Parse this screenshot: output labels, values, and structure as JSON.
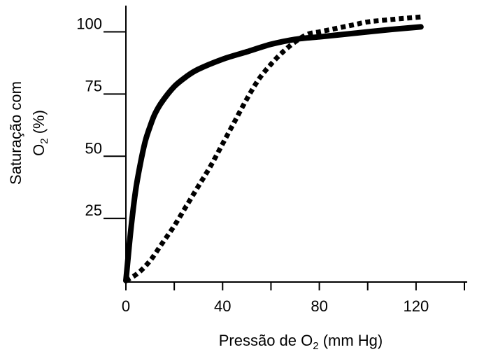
{
  "chart_data": {
    "type": "line",
    "xlabel": {
      "prefix": "Pressão de O",
      "sub": "2",
      "suffix": " (mm Hg)"
    },
    "ylabel": {
      "line1": "Saturação com",
      "line2_prefix": "O",
      "line2_sub": "2",
      "line2_suffix": " (%)"
    },
    "xlim": [
      0,
      140
    ],
    "ylim": [
      0,
      110
    ],
    "x_tick_values": [
      0,
      20,
      40,
      60,
      80,
      100,
      120,
      140
    ],
    "x_tick_labels": [
      "0",
      "40",
      "80",
      "120"
    ],
    "x_tick_label_values": [
      0,
      40,
      80,
      120
    ],
    "y_tick_values": [
      25,
      50,
      75,
      100
    ],
    "y_tick_labels": [
      "25",
      "50",
      "75",
      "100"
    ],
    "grid": false,
    "legend": "none",
    "series": [
      {
        "style": "solid",
        "color": "#000000",
        "x": [
          0,
          2,
          4,
          6,
          8,
          10,
          12,
          15,
          20,
          25,
          30,
          40,
          50,
          60,
          70,
          80,
          90,
          100,
          110,
          122
        ],
        "y": [
          0,
          20,
          36,
          47,
          56,
          62,
          67,
          72,
          78,
          82,
          85,
          89,
          92,
          95,
          97,
          98,
          99,
          100,
          101,
          102
        ]
      },
      {
        "style": "dotted",
        "color": "#000000",
        "x": [
          0,
          5,
          10,
          15,
          20,
          25,
          30,
          35,
          40,
          45,
          50,
          55,
          60,
          65,
          70,
          75,
          80,
          85,
          90,
          95,
          100,
          110,
          122
        ],
        "y": [
          0,
          3,
          8,
          15,
          22,
          30,
          38,
          46,
          55,
          64,
          73,
          81,
          87,
          92,
          96,
          99,
          100,
          101,
          102,
          103,
          104,
          105,
          106
        ]
      }
    ]
  }
}
